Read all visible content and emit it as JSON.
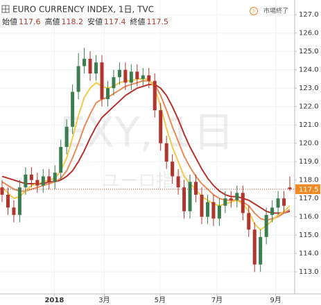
{
  "chart_data": {
    "type": "candlestick",
    "title": "EURO CURRENCY INDEX, 1日, TVC",
    "status": "市場終了",
    "watermark": "EXY, 1日",
    "watermark_sub": "ユーロ指数",
    "legend_labels": [
      "始値",
      "高値",
      "安値",
      "終値"
    ],
    "categories": [
      null,
      null,
      null,
      null,
      null,
      null,
      null,
      null,
      null,
      null,
      null,
      null,
      null,
      null,
      null,
      null,
      null,
      null,
      null,
      null,
      null,
      null,
      null,
      null,
      null,
      null,
      null,
      null,
      null,
      null,
      null,
      null,
      null,
      null,
      null,
      null,
      null,
      null,
      null,
      null,
      null,
      null,
      null,
      null,
      null,
      null,
      null,
      null,
      null,
      null
    ],
    "open": [
      117.6,
      117.2,
      116.5,
      116.1,
      117.6,
      118.3,
      118.0,
      117.7,
      118.2,
      117.9,
      118.4,
      119.8,
      120.9,
      122.8,
      124.2,
      124.6,
      123.8,
      124.4,
      122.4,
      123.0,
      123.6,
      124.0,
      123.3,
      123.9,
      123.5,
      123.7,
      123.4,
      121.8,
      120.0,
      119.0,
      118.2,
      117.6,
      116.3,
      117.9,
      117.2,
      116.0,
      116.8,
      115.9,
      116.6,
      117.0,
      116.9,
      117.3,
      116.2,
      115.3,
      113.4,
      114.9,
      116.1,
      116.5,
      117.0,
      117.6
    ],
    "high": [
      118.0,
      117.6,
      116.9,
      118.0,
      118.7,
      118.7,
      118.4,
      118.6,
      118.6,
      118.8,
      120.2,
      121.3,
      123.2,
      124.9,
      125.2,
      125.0,
      124.8,
      124.8,
      123.4,
      124.0,
      124.4,
      124.4,
      124.3,
      124.3,
      124.1,
      124.1,
      123.8,
      122.2,
      120.4,
      119.4,
      118.6,
      118.0,
      118.3,
      118.3,
      117.6,
      117.2,
      117.2,
      117.0,
      117.4,
      117.4,
      117.7,
      117.7,
      116.6,
      115.7,
      115.3,
      116.5,
      116.9,
      117.4,
      117.4,
      118.2
    ],
    "low": [
      116.8,
      116.1,
      115.7,
      115.7,
      117.2,
      117.6,
      117.3,
      117.3,
      117.5,
      117.5,
      118.0,
      119.4,
      120.5,
      122.4,
      123.8,
      123.4,
      123.4,
      122.0,
      122.0,
      122.6,
      123.2,
      122.9,
      122.9,
      123.1,
      123.1,
      123.0,
      121.4,
      119.6,
      118.6,
      117.8,
      117.2,
      115.9,
      115.9,
      116.8,
      115.6,
      115.6,
      115.5,
      115.5,
      116.2,
      116.5,
      116.5,
      115.8,
      114.9,
      113.0,
      113.0,
      114.5,
      115.7,
      116.1,
      116.2,
      117.4
    ],
    "close": [
      117.2,
      116.5,
      116.1,
      117.6,
      118.3,
      118.0,
      117.7,
      118.2,
      117.9,
      118.4,
      119.8,
      120.9,
      122.8,
      124.2,
      124.6,
      123.8,
      124.4,
      122.4,
      123.0,
      123.6,
      124.0,
      123.3,
      123.9,
      123.5,
      123.7,
      123.4,
      121.8,
      120.0,
      119.0,
      118.2,
      117.6,
      116.3,
      117.9,
      117.2,
      116.0,
      116.8,
      115.9,
      116.6,
      117.0,
      116.9,
      117.3,
      116.2,
      115.3,
      113.4,
      114.9,
      116.1,
      116.5,
      117.0,
      116.6,
      117.5
    ],
    "up_color": "#3c7d4f",
    "down_color": "#b0352d",
    "last_color": "#f08a24",
    "series": [
      {
        "color": "#f3c94a",
        "values": [
          117.6,
          117.3,
          117.0,
          117.1,
          117.4,
          117.7,
          117.8,
          117.9,
          118.0,
          118.1,
          118.5,
          119.2,
          120.3,
          121.5,
          122.5,
          123.0,
          123.3,
          123.1,
          123.0,
          123.1,
          123.3,
          123.4,
          123.4,
          123.5,
          123.5,
          123.5,
          123.0,
          122.0,
          120.8,
          119.8,
          119.0,
          118.2,
          117.8,
          117.5,
          117.1,
          116.9,
          116.7,
          116.6,
          116.7,
          116.8,
          116.9,
          116.7,
          116.3,
          115.6,
          115.3,
          115.5,
          115.8,
          116.1,
          116.3,
          116.6
        ]
      },
      {
        "color": "#e88a55",
        "values": [
          117.9,
          117.7,
          117.5,
          117.4,
          117.4,
          117.5,
          117.6,
          117.7,
          117.8,
          117.9,
          118.1,
          118.5,
          119.2,
          120.0,
          120.9,
          121.6,
          122.2,
          122.4,
          122.5,
          122.7,
          122.9,
          123.1,
          123.2,
          123.3,
          123.4,
          123.4,
          123.2,
          122.6,
          121.8,
          120.9,
          120.1,
          119.3,
          118.7,
          118.2,
          117.8,
          117.5,
          117.2,
          117.0,
          116.9,
          116.9,
          116.9,
          116.8,
          116.6,
          116.2,
          115.9,
          115.8,
          115.9,
          116.0,
          116.2,
          116.4
        ]
      },
      {
        "color": "#b5312b",
        "values": [
          118.2,
          118.1,
          118.0,
          117.9,
          117.8,
          117.8,
          117.8,
          117.8,
          117.9,
          117.9,
          118.0,
          118.2,
          118.5,
          119.0,
          119.6,
          120.3,
          120.9,
          121.4,
          121.7,
          122.0,
          122.3,
          122.6,
          122.8,
          123.0,
          123.1,
          123.2,
          123.2,
          123.0,
          122.6,
          122.0,
          121.3,
          120.5,
          119.8,
          119.2,
          118.6,
          118.1,
          117.7,
          117.4,
          117.2,
          117.1,
          117.1,
          117.0,
          116.9,
          116.7,
          116.5,
          116.3,
          116.2,
          116.2,
          116.2,
          116.3
        ]
      }
    ],
    "ylim": [
      111.8,
      127.8
    ],
    "yticks": [
      {
        "value": 113,
        "label": "113.0"
      },
      {
        "value": 114,
        "label": "114.0"
      },
      {
        "value": 115,
        "label": "115.0"
      },
      {
        "value": 116,
        "label": "116.0"
      },
      {
        "value": 117,
        "label": "117.0"
      },
      {
        "value": 118,
        "label": "118.0"
      },
      {
        "value": 119,
        "label": "119.0"
      },
      {
        "value": 120,
        "label": "120.0"
      },
      {
        "value": 121,
        "label": "121.0"
      },
      {
        "value": 122,
        "label": "122.0"
      },
      {
        "value": 123,
        "label": "123.0"
      },
      {
        "value": 124,
        "label": "124.0"
      },
      {
        "value": 125,
        "label": "125.0"
      },
      {
        "value": 126,
        "label": "126.0"
      },
      {
        "value": 127,
        "label": "127.0"
      }
    ],
    "xticks": [
      {
        "value": 8.9,
        "label": "2018"
      },
      {
        "value": 17.4,
        "label": "3月"
      },
      {
        "value": 26.9,
        "label": "5月"
      },
      {
        "value": 36.6,
        "label": "7月"
      },
      {
        "value": 46.6,
        "label": "9月"
      }
    ],
    "grid": true
  }
}
